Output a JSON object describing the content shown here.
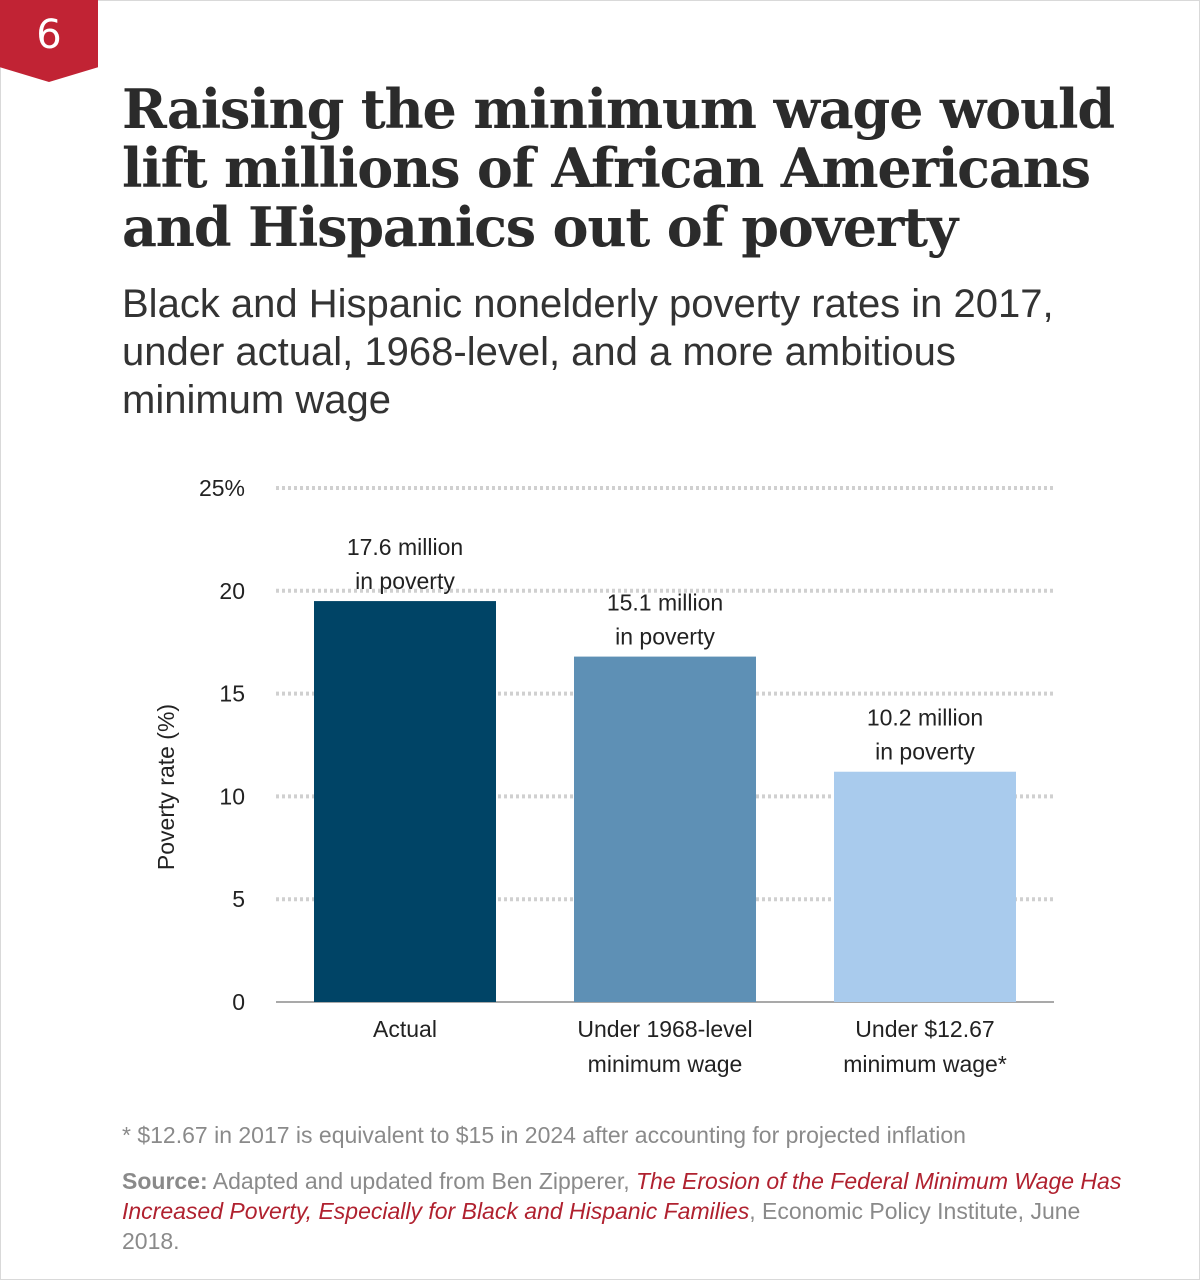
{
  "badge": "6",
  "title": "Raising the minimum wage would lift millions of African Americans and Hispanics out of poverty",
  "subtitle": "Black and Hispanic nonelderly poverty rates in 2017, under actual, 1968-level, and a more ambitious minimum wage",
  "chart_data": {
    "type": "bar",
    "categories": [
      [
        "Actual"
      ],
      [
        "Under 1968-level",
        "minimum wage"
      ],
      [
        "Under $12.67",
        "minimum wage*"
      ]
    ],
    "values": [
      19.5,
      16.8,
      11.2
    ],
    "annotations": [
      [
        "17.6 million",
        "in poverty"
      ],
      [
        "15.1 million",
        "in poverty"
      ],
      [
        "10.2 million",
        "in poverty"
      ]
    ],
    "colors": [
      "#004466",
      "#5e90b5",
      "#a9cbed"
    ],
    "ylabel": "Poverty rate (%)",
    "yticks": [
      "0",
      "5",
      "10",
      "15",
      "20",
      "25%"
    ],
    "ylim": [
      0,
      25
    ],
    "grid": true
  },
  "footnote": "* $12.67 in 2017 is equivalent to $15 in 2024 after accounting for projected inflation",
  "source": {
    "lead": "Source:",
    "text": "Adapted and updated from Ben Zipperer,",
    "ref_title": "The Erosion of the Federal Minimum Wage Has Increased Poverty, Especially for Black and Hispanic Families",
    "comma": ",",
    "tail": "Economic Policy Institute, June 2018."
  }
}
